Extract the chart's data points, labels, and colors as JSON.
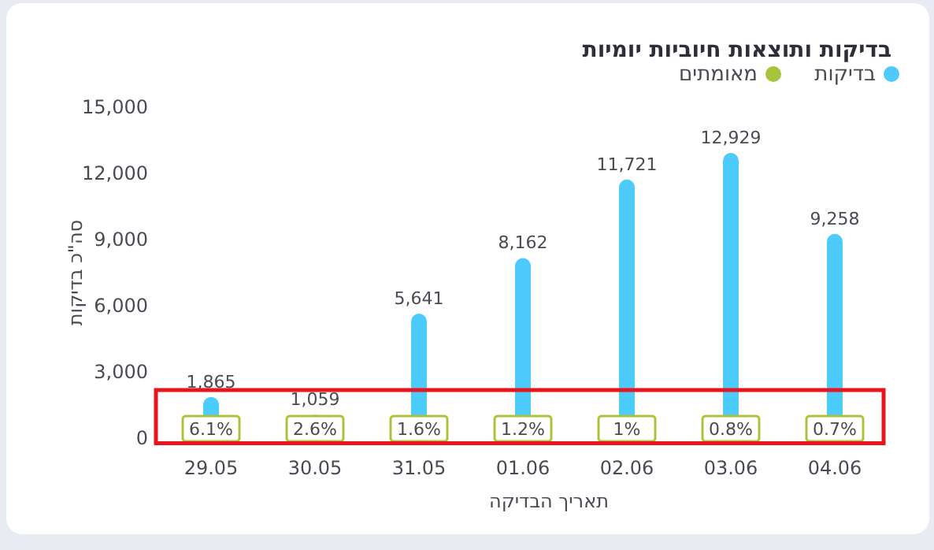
{
  "chart_data": {
    "type": "bar",
    "title": "בדיקות ותוצאות חיוביות יומיות",
    "xlabel": "תאריך הבדיקה",
    "ylabel": "סה\"כ בדיקות",
    "categories": [
      "29.05",
      "30.05",
      "31.05",
      "01.06",
      "02.06",
      "03.06",
      "04.06"
    ],
    "series": [
      {
        "name": "בדיקות",
        "color": "#4ecbfd",
        "values": [
          1865,
          1059,
          5641,
          8162,
          11721,
          12929,
          9258
        ],
        "value_labels": [
          "1,865",
          "1,059",
          "5,641",
          "8,162",
          "11,721",
          "12,929",
          "9,258"
        ]
      },
      {
        "name": "מאומתים",
        "color": "#a8c43c",
        "values": [
          null,
          null,
          null,
          null,
          null,
          null,
          null
        ]
      }
    ],
    "annotations": [
      {
        "text": "6.1%",
        "x": "29.05"
      },
      {
        "text": "2.6%",
        "x": "30.05"
      },
      {
        "text": "1.6%",
        "x": "31.05"
      },
      {
        "text": "1.2%",
        "x": "01.06"
      },
      {
        "text": "1%",
        "x": "02.06"
      },
      {
        "text": "0.8%",
        "x": "03.06"
      },
      {
        "text": "0.7%",
        "x": "04.06"
      }
    ],
    "ylim": [
      0,
      15000
    ],
    "yticks": [
      {
        "value": 0,
        "label": "0"
      },
      {
        "value": 3000,
        "label": "3,000"
      },
      {
        "value": 6000,
        "label": "6,000"
      },
      {
        "value": 9000,
        "label": "9,000"
      },
      {
        "value": 12000,
        "label": "12,000"
      },
      {
        "value": 15000,
        "label": "15,000"
      }
    ],
    "grid": false,
    "legend": "top right"
  }
}
